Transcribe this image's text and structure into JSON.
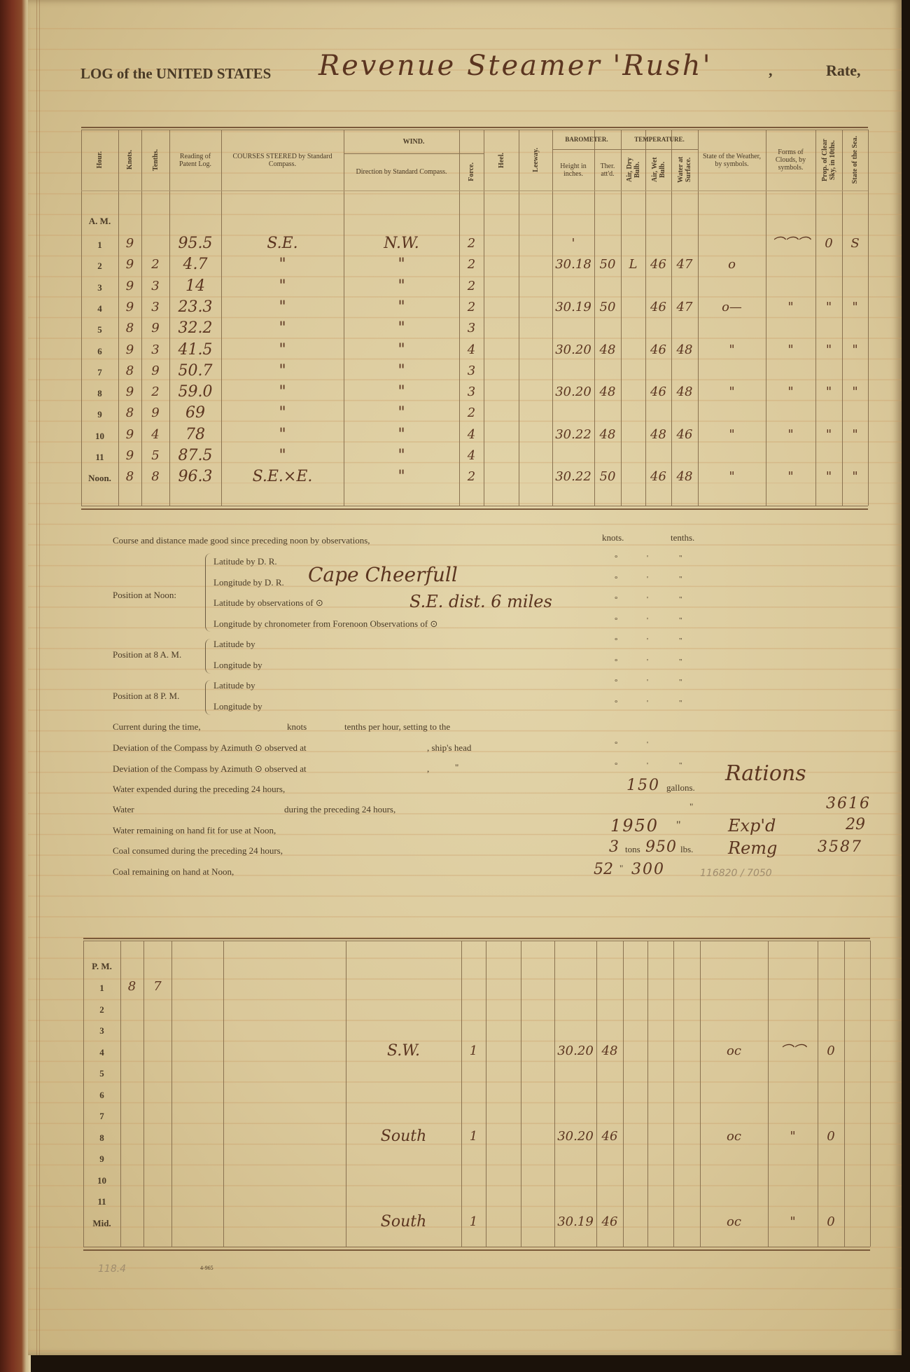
{
  "header": {
    "log_prefix": "LOG of the UNITED STATES",
    "vessel_handwritten": "Revenue Steamer 'Rush'",
    "comma": ",",
    "rate_label": "Rate,"
  },
  "headers": {
    "hour": "Hour.",
    "knots": "Knots.",
    "tenths": "Tenths.",
    "patent_log": "Reading of Patent Log.",
    "course": "COURSES STEERED by Standard Compass.",
    "wind_group": "WIND.",
    "wind_dir": "Direction by Standard Compass.",
    "force": "Force.",
    "heel": "Heel.",
    "leeway": "Leeway.",
    "barometer_group": "BAROMETER.",
    "temperature_group": "TEMPERATURE.",
    "bar_height": "Height in inches.",
    "ther_attd": "Ther. att'd.",
    "air_dry": "Air, Dry Bulb.",
    "air_wet": "Air, Wet Bulb.",
    "water_surface": "Water at Surface.",
    "weather": "State of the Weather, by symbols.",
    "clouds": "Forms of Clouds, by symbols.",
    "clear_sky": "Prop. of Clear Sky, in 10ths.",
    "sea": "State of the Sea."
  },
  "am_table": {
    "period_label": "A. M.",
    "rows": [
      {
        "hour": "1",
        "knots": "9",
        "patent_log": "95.5",
        "course": "S.E.",
        "wind_dir": "N.W.",
        "force": "2",
        "bar_height": "'",
        "clouds": "⌒⌒⌒",
        "clear_sky": "0",
        "sea": "S"
      },
      {
        "hour": "2",
        "knots": "9",
        "tenths": "2",
        "patent_log": "4.7",
        "course": "\"",
        "wind_dir": "\"",
        "force": "2",
        "bar_height": "30.18",
        "ther_attd": "50",
        "air_dry": "L",
        "air_wet": "46",
        "water_surface": "47",
        "weather": "o"
      },
      {
        "hour": "3",
        "knots": "9",
        "tenths": "3",
        "patent_log": "14",
        "course": "\"",
        "wind_dir": "\"",
        "force": "2"
      },
      {
        "hour": "4",
        "knots": "9",
        "tenths": "3",
        "patent_log": "23.3",
        "course": "\"",
        "wind_dir": "\"",
        "force": "2",
        "bar_height": "30.19",
        "ther_attd": "50",
        "air_wet": "46",
        "water_surface": "47",
        "weather": "o—",
        "clouds": "\"",
        "clear_sky": "\"",
        "sea": "\""
      },
      {
        "hour": "5",
        "knots": "8",
        "tenths": "9",
        "patent_log": "32.2",
        "course": "\"",
        "wind_dir": "\"",
        "force": "3"
      },
      {
        "hour": "6",
        "knots": "9",
        "tenths": "3",
        "patent_log": "41.5",
        "course": "\"",
        "wind_dir": "\"",
        "force": "4",
        "bar_height": "30.20",
        "ther_attd": "48",
        "air_wet": "46",
        "water_surface": "48",
        "weather": "\"",
        "clouds": "\"",
        "clear_sky": "\"",
        "sea": "\""
      },
      {
        "hour": "7",
        "knots": "8",
        "tenths": "9",
        "patent_log": "50.7",
        "course": "\"",
        "wind_dir": "\"",
        "force": "3"
      },
      {
        "hour": "8",
        "knots": "9",
        "tenths": "2",
        "patent_log": "59.0",
        "course": "\"",
        "wind_dir": "\"",
        "force": "3",
        "bar_height": "30.20",
        "ther_attd": "48",
        "air_wet": "46",
        "water_surface": "48",
        "weather": "\"",
        "clouds": "\"",
        "clear_sky": "\"",
        "sea": "\""
      },
      {
        "hour": "9",
        "knots": "8",
        "tenths": "9",
        "patent_log": "69",
        "course": "\"",
        "wind_dir": "\"",
        "force": "2"
      },
      {
        "hour": "10",
        "knots": "9",
        "tenths": "4",
        "patent_log": "78",
        "course": "\"",
        "wind_dir": "\"",
        "force": "4",
        "bar_height": "30.22",
        "ther_attd": "48",
        "air_wet": "48",
        "water_surface": "46",
        "weather": "\"",
        "clouds": "\"",
        "clear_sky": "\"",
        "sea": "\""
      },
      {
        "hour": "11",
        "knots": "9",
        "tenths": "5",
        "patent_log": "87.5",
        "course": "\"",
        "wind_dir": "\"",
        "force": "4"
      },
      {
        "hour": "Noon.",
        "knots": "8",
        "tenths": "8",
        "patent_log": "96.3",
        "course": "S.E.×E.",
        "wind_dir": "\"",
        "force": "2",
        "bar_height": "30.22",
        "ther_attd": "50",
        "air_wet": "46",
        "water_surface": "48",
        "weather": "\"",
        "clouds": "\"",
        "clear_sky": "\"",
        "sea": "\""
      }
    ]
  },
  "pm_table": {
    "period_label": "P. M.",
    "rows": [
      {
        "hour": "1",
        "knots": "8",
        "tenths": "7"
      },
      {
        "hour": "2"
      },
      {
        "hour": "3"
      },
      {
        "hour": "4",
        "wind_dir": "S.W.",
        "force": "1",
        "bar_height": "30.20",
        "ther_attd": "48",
        "weather": "oc",
        "clouds": "⌒⌒",
        "clear_sky": "0"
      },
      {
        "hour": "5"
      },
      {
        "hour": "6"
      },
      {
        "hour": "7"
      },
      {
        "hour": "8",
        "wind_dir": "South",
        "force": "1",
        "bar_height": "30.20",
        "ther_attd": "46",
        "weather": "oc",
        "clouds": "\"",
        "clear_sky": "0"
      },
      {
        "hour": "9"
      },
      {
        "hour": "10"
      },
      {
        "hour": "11"
      },
      {
        "hour": "Mid.",
        "wind_dir": "South",
        "force": "1",
        "bar_height": "30.19",
        "ther_attd": "46",
        "weather": "oc",
        "clouds": "\"",
        "clear_sky": "0"
      }
    ]
  },
  "noon_summary": {
    "course_distance_label": "Course and distance made good since preceding noon by observations,",
    "knots_label": "knots.",
    "tenths_label": "tenths.",
    "deg": "°",
    "min": "'",
    "sec": "\"",
    "position_noon_label": "Position at Noon:",
    "lat_dr": "Latitude by D. R.",
    "lon_dr": "Longitude by D. R.",
    "lat_obs": "Latitude by observations of ⊙",
    "lon_chron": "Longitude by chronometer from Forenoon Observations of ⊙",
    "position_8am_label": "Position at 8 A. M.",
    "position_8pm_label": "Position at 8 P. M.",
    "lat_by": "Latitude by",
    "lon_by": "Longitude by",
    "handwritten_position_1": "Cape Cheerfull",
    "handwritten_position_2": "S.E. dist. 6 miles",
    "current_label": "Current during the time,",
    "current_knots": "knots",
    "current_tenths": "tenths per hour, setting to the",
    "deviation_label": "Deviation of the Compass by Azimuth ⊙ observed at",
    "ships_head": ", ship's head",
    "comma": ",",
    "ditto": "\"",
    "water_expended_label": "Water expended during the preceding 24 hours,",
    "water_expended_value": "150",
    "gallons_label": "gallons.",
    "water_label": "Water",
    "water_during_label": "during the preceding 24 hours,",
    "water_remaining_label": "Water remaining on hand fit for use at Noon,",
    "water_remaining_value": "1950",
    "coal_consumed_label": "Coal consumed during the preceding 24 hours,",
    "coal_tons_value": "3",
    "tons_label": "tons",
    "coal_lbs_value": "950",
    "lbs_label": "lbs.",
    "coal_remaining_label": "Coal remaining on hand at Noon,",
    "coal_remaining_tons": "52",
    "coal_remaining_lbs": "300",
    "pencil_note": "116820 / 7050"
  },
  "rations": {
    "title": "Rations",
    "total": "3616",
    "expended_label": "Exp'd",
    "expended_value": "29",
    "remaining_label": "Remg",
    "remaining_value": "3587"
  },
  "footer": {
    "pencil_total": "118.4",
    "form_number": "4-965"
  }
}
